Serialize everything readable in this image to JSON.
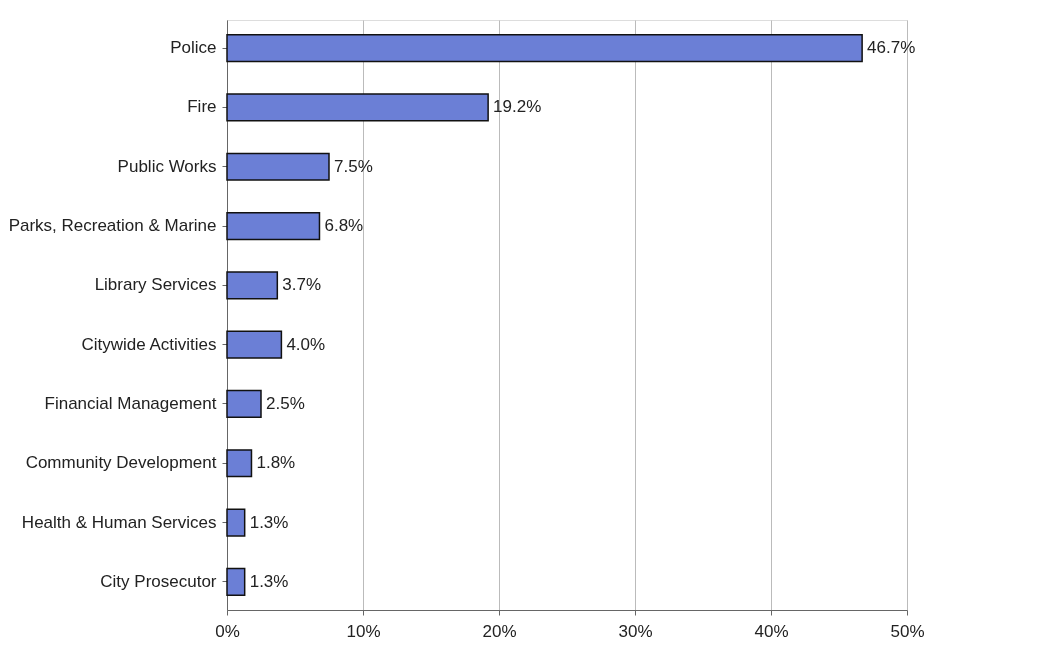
{
  "chart_data": {
    "type": "bar",
    "orientation": "horizontal",
    "categories": [
      "Police",
      "Fire",
      "Public Works",
      "Parks, Recreation & Marine",
      "Library Services",
      "Citywide Activities",
      "Financial Management",
      "Community Development",
      "Health & Human Services",
      "City Prosecutor"
    ],
    "values": [
      46.7,
      19.2,
      7.5,
      6.8,
      3.7,
      4.0,
      2.5,
      1.8,
      1.3,
      1.3
    ],
    "value_labels": [
      "46.7%",
      "19.2%",
      "7.5%",
      "6.8%",
      "3.7%",
      "4.0%",
      "2.5%",
      "1.8%",
      "1.3%",
      "1.3%"
    ],
    "color": "#6b7fd6",
    "xlim": [
      0,
      50
    ],
    "xticks": [
      {
        "value": 0,
        "label": "0%"
      },
      {
        "value": 10,
        "label": "10%"
      },
      {
        "value": 20,
        "label": "20%"
      },
      {
        "value": 30,
        "label": "30%"
      },
      {
        "value": 40,
        "label": "40%"
      },
      {
        "value": 50,
        "label": "50%"
      }
    ],
    "grid": "x"
  }
}
